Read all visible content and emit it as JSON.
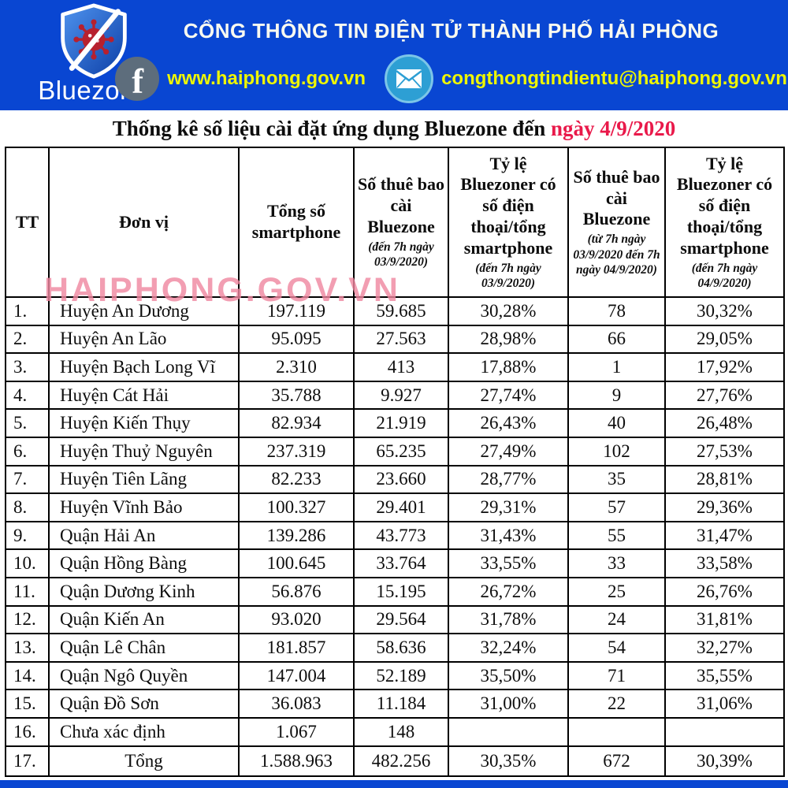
{
  "colors": {
    "banner_blue": "#0946d2",
    "link_yellow": "#eef602",
    "title_white": "#fafaf0",
    "date_red": "#e9194a",
    "watermark_pink": "#f087a0",
    "virus_red": "#b7202e",
    "facebook_gray": "#5d6d7c",
    "mail_teal": "#2d9fd4",
    "border_black": "#000000"
  },
  "banner": {
    "logo_text": "Bluezone",
    "portal_title": "CỔNG THÔNG TIN ĐIỆN TỬ THÀNH PHỐ HẢI PHÒNG",
    "website": "www.haiphong.gov.vn",
    "email": "congthongtindientu@haiphong.gov.vn"
  },
  "doc_title": {
    "prefix": "Thống kê số liệu cài đặt ứng dụng Bluezone đến ",
    "highlight": "ngày 4/9/2020"
  },
  "watermark": "HAIPHONG.GOV.VN",
  "table": {
    "header_keys": [
      "tt",
      "don-vi",
      "tong-so-smartphone",
      "so-thue-bao-cai-bluezone-03-9",
      "ty-le-bluezoner-03-9",
      "so-thue-bao-cai-bluezone-04-9",
      "ty-le-bluezoner-04-9"
    ],
    "headers": [
      {
        "label": "TT",
        "sub": ""
      },
      {
        "label": "Đơn vị",
        "sub": ""
      },
      {
        "label": "Tổng số smartphone",
        "sub": ""
      },
      {
        "label": "Số thuê bao cài Bluezone",
        "sub": "(đến 7h ngày 03/9/2020)"
      },
      {
        "label": "Tỷ lệ Bluezoner có số điện thoại/tổng smartphone",
        "sub": "(đến 7h ngày 03/9/2020)"
      },
      {
        "label": "Số thuê bao cài Bluezone",
        "sub": "(từ 7h ngày 03/9/2020 đến 7h ngày 04/9/2020)"
      },
      {
        "label": "Tỷ lệ Bluezoner có số điện thoại/tổng smartphone",
        "sub": "(đến 7h ngày 04/9/2020)"
      }
    ],
    "rows": [
      [
        "1.",
        "Huyện An Dương",
        "197.119",
        "59.685",
        "30,28%",
        "78",
        "30,32%"
      ],
      [
        "2.",
        "Huyện An Lão",
        "95.095",
        "27.563",
        "28,98%",
        "66",
        "29,05%"
      ],
      [
        "3.",
        "Huyện Bạch Long Vĩ",
        "2.310",
        "413",
        "17,88%",
        "1",
        "17,92%"
      ],
      [
        "4.",
        "Huyện Cát Hải",
        "35.788",
        "9.927",
        "27,74%",
        "9",
        "27,76%"
      ],
      [
        "5.",
        "Huyện Kiến Thụy",
        "82.934",
        "21.919",
        "26,43%",
        "40",
        "26,48%"
      ],
      [
        "6.",
        "Huyện Thuỷ Nguyên",
        "237.319",
        "65.235",
        "27,49%",
        "102",
        "27,53%"
      ],
      [
        "7.",
        "Huyện Tiên Lãng",
        "82.233",
        "23.660",
        "28,77%",
        "35",
        "28,81%"
      ],
      [
        "8.",
        "Huyện Vĩnh Bảo",
        "100.327",
        "29.401",
        "29,31%",
        "57",
        "29,36%"
      ],
      [
        "9.",
        "Quận Hải An",
        "139.286",
        "43.773",
        "31,43%",
        "55",
        "31,47%"
      ],
      [
        "10.",
        "Quận Hồng Bàng",
        "100.645",
        "33.764",
        "33,55%",
        "33",
        "33,58%"
      ],
      [
        "11.",
        "Quận Dương Kinh",
        "56.876",
        "15.195",
        "26,72%",
        "25",
        "26,76%"
      ],
      [
        "12.",
        "Quận Kiến An",
        "93.020",
        "29.564",
        "31,78%",
        "24",
        "31,81%"
      ],
      [
        "13.",
        "Quận Lê Chân",
        "181.857",
        "58.636",
        "32,24%",
        "54",
        "32,27%"
      ],
      [
        "14.",
        "Quận Ngô Quyền",
        "147.004",
        "52.189",
        "35,50%",
        "71",
        "35,55%"
      ],
      [
        "15.",
        "Quận Đồ Sơn",
        "36.083",
        "11.184",
        "31,00%",
        "22",
        "31,06%"
      ],
      [
        "16.",
        "Chưa xác định",
        "1.067",
        "148",
        "",
        "",
        ""
      ],
      [
        "17.",
        "Tổng",
        "1.588.963",
        "482.256",
        "30,35%",
        "672",
        "30,39%"
      ]
    ]
  }
}
